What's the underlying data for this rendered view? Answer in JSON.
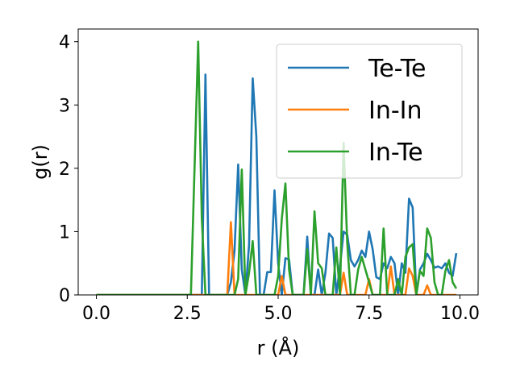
{
  "chart_data": {
    "type": "line",
    "xlabel": "r (Å)",
    "ylabel": "g(r)",
    "xlim": [
      -0.5,
      10.5
    ],
    "ylim": [
      0,
      4.2
    ],
    "xticks": [
      0.0,
      2.5,
      5.0,
      7.5,
      10.0
    ],
    "xtick_labels": [
      "0.0",
      "2.5",
      "5.0",
      "7.5",
      "10.0"
    ],
    "yticks": [
      0,
      1,
      2,
      3,
      4
    ],
    "ytick_labels": [
      "0",
      "1",
      "2",
      "3",
      "4"
    ],
    "grid": false,
    "legend_position": "upper-right",
    "series": [
      {
        "name": "Te-Te",
        "color": "#1f77b4",
        "points": [
          [
            0.0,
            0.0
          ],
          [
            2.9,
            0.0
          ],
          [
            3.0,
            3.48
          ],
          [
            3.1,
            0.0
          ],
          [
            3.6,
            0.0
          ],
          [
            3.7,
            0.2
          ],
          [
            3.8,
            0.7
          ],
          [
            3.9,
            2.06
          ],
          [
            4.0,
            0.4
          ],
          [
            4.1,
            0.0
          ],
          [
            4.2,
            0.8
          ],
          [
            4.3,
            3.42
          ],
          [
            4.4,
            2.5
          ],
          [
            4.5,
            0.0
          ],
          [
            4.6,
            0.0
          ],
          [
            4.7,
            0.36
          ],
          [
            4.8,
            0.36
          ],
          [
            4.9,
            1.65
          ],
          [
            5.0,
            0.5
          ],
          [
            5.1,
            0.0
          ],
          [
            5.2,
            0.58
          ],
          [
            5.3,
            0.56
          ],
          [
            5.4,
            0.0
          ],
          [
            5.7,
            0.0
          ],
          [
            5.8,
            0.92
          ],
          [
            5.9,
            0.0
          ],
          [
            6.0,
            0.0
          ],
          [
            6.1,
            0.4
          ],
          [
            6.2,
            0.0
          ],
          [
            6.3,
            0.35
          ],
          [
            6.4,
            0.97
          ],
          [
            6.5,
            0.9
          ],
          [
            6.6,
            0.0
          ],
          [
            6.7,
            0.45
          ],
          [
            6.8,
            1.0
          ],
          [
            6.9,
            0.95
          ],
          [
            7.0,
            0.55
          ],
          [
            7.1,
            0.45
          ],
          [
            7.2,
            0.55
          ],
          [
            7.3,
            0.7
          ],
          [
            7.4,
            0.6
          ],
          [
            7.5,
            1.0
          ],
          [
            7.6,
            0.72
          ],
          [
            7.7,
            0.28
          ],
          [
            7.8,
            0.25
          ],
          [
            7.9,
            0.5
          ],
          [
            8.0,
            0.42
          ],
          [
            8.1,
            0.6
          ],
          [
            8.2,
            0.5
          ],
          [
            8.3,
            0.0
          ],
          [
            8.4,
            0.5
          ],
          [
            8.5,
            0.35
          ],
          [
            8.6,
            1.52
          ],
          [
            8.7,
            1.38
          ],
          [
            8.8,
            0.0
          ],
          [
            8.9,
            0.4
          ],
          [
            9.0,
            0.5
          ],
          [
            9.1,
            0.65
          ],
          [
            9.2,
            0.55
          ],
          [
            9.3,
            0.43
          ],
          [
            9.4,
            0.45
          ],
          [
            9.5,
            0.42
          ],
          [
            9.6,
            0.5
          ],
          [
            9.7,
            0.35
          ],
          [
            9.8,
            0.3
          ],
          [
            9.9,
            0.66
          ]
        ]
      },
      {
        "name": "In-In",
        "color": "#ff7f0e",
        "points": [
          [
            0.0,
            0.0
          ],
          [
            3.6,
            0.0
          ],
          [
            3.7,
            1.15
          ],
          [
            3.8,
            0.0
          ],
          [
            5.0,
            0.0
          ],
          [
            5.1,
            0.3
          ],
          [
            5.2,
            0.0
          ],
          [
            6.7,
            0.0
          ],
          [
            6.8,
            0.35
          ],
          [
            6.9,
            0.0
          ],
          [
            7.4,
            0.0
          ],
          [
            7.5,
            0.25
          ],
          [
            7.6,
            0.0
          ],
          [
            8.0,
            0.0
          ],
          [
            8.1,
            0.45
          ],
          [
            8.2,
            0.0
          ],
          [
            8.5,
            0.0
          ],
          [
            8.6,
            0.42
          ],
          [
            8.7,
            0.3
          ],
          [
            8.8,
            0.0
          ],
          [
            9.0,
            0.0
          ],
          [
            9.1,
            0.15
          ],
          [
            9.2,
            0.0
          ],
          [
            9.9,
            0.0
          ]
        ]
      },
      {
        "name": "In-Te",
        "color": "#2ca02c",
        "points": [
          [
            0.0,
            0.0
          ],
          [
            2.6,
            0.0
          ],
          [
            2.8,
            4.0
          ],
          [
            2.9,
            1.2
          ],
          [
            3.0,
            0.0
          ],
          [
            3.8,
            0.0
          ],
          [
            3.9,
            0.25
          ],
          [
            4.0,
            1.98
          ],
          [
            4.1,
            0.0
          ],
          [
            4.2,
            0.35
          ],
          [
            4.3,
            0.85
          ],
          [
            4.4,
            0.0
          ],
          [
            4.9,
            0.0
          ],
          [
            5.0,
            0.3
          ],
          [
            5.1,
            1.2
          ],
          [
            5.2,
            1.76
          ],
          [
            5.3,
            0.4
          ],
          [
            5.4,
            0.0
          ],
          [
            5.7,
            0.0
          ],
          [
            5.8,
            0.72
          ],
          [
            5.9,
            0.0
          ],
          [
            6.0,
            1.32
          ],
          [
            6.1,
            0.5
          ],
          [
            6.2,
            0.42
          ],
          [
            6.3,
            0.0
          ],
          [
            6.5,
            0.0
          ],
          [
            6.6,
            0.75
          ],
          [
            6.7,
            0.0
          ],
          [
            6.8,
            2.4
          ],
          [
            6.9,
            0.82
          ],
          [
            7.0,
            0.0
          ],
          [
            7.1,
            0.0
          ],
          [
            7.2,
            0.4
          ],
          [
            7.3,
            0.6
          ],
          [
            7.4,
            0.4
          ],
          [
            7.5,
            0.2
          ],
          [
            7.6,
            0.0
          ],
          [
            7.7,
            0.0
          ],
          [
            7.8,
            0.0
          ],
          [
            7.9,
            1.05
          ],
          [
            8.0,
            0.0
          ],
          [
            8.1,
            0.0
          ],
          [
            8.2,
            0.0
          ],
          [
            8.3,
            0.25
          ],
          [
            8.4,
            0.0
          ],
          [
            8.5,
            0.6
          ],
          [
            8.6,
            0.75
          ],
          [
            8.7,
            0.8
          ],
          [
            8.8,
            0.0
          ],
          [
            8.9,
            0.38
          ],
          [
            9.0,
            0.3
          ],
          [
            9.1,
            1.05
          ],
          [
            9.2,
            0.9
          ],
          [
            9.3,
            0.2
          ],
          [
            9.4,
            0.0
          ],
          [
            9.5,
            0.0
          ],
          [
            9.6,
            0.38
          ],
          [
            9.7,
            0.55
          ],
          [
            9.8,
            0.2
          ],
          [
            9.9,
            0.1
          ]
        ]
      }
    ]
  }
}
